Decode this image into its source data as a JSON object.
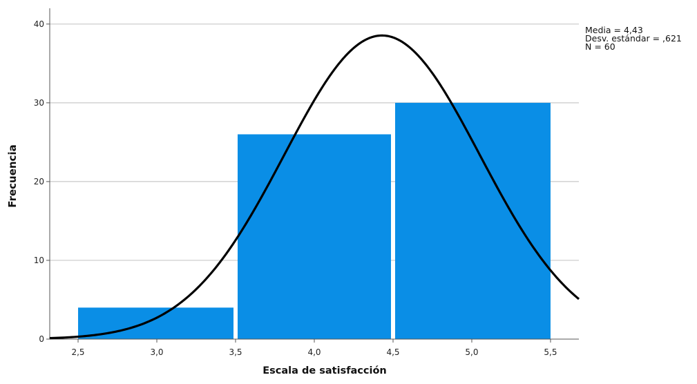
{
  "chart_data": {
    "type": "bar",
    "subtype": "histogram-with-normal-curve",
    "xlabel": "Escala de satisfacción",
    "ylabel": "Frecuencia",
    "bins": [
      {
        "from": 2.5,
        "to": 3.5,
        "value": 4
      },
      {
        "from": 3.5,
        "to": 4.5,
        "value": 26
      },
      {
        "from": 4.5,
        "to": 5.5,
        "value": 30
      }
    ],
    "xticks": [
      "2,5",
      "3,0",
      "3,5",
      "4,0",
      "4,5",
      "5,0",
      "5,5"
    ],
    "xtick_values": [
      2.5,
      3.0,
      3.5,
      4.0,
      4.5,
      5.0,
      5.5
    ],
    "yticks": [
      "0",
      "10",
      "20",
      "30",
      "40"
    ],
    "ytick_values": [
      0,
      10,
      20,
      30,
      40
    ],
    "xlim": [
      2.32,
      5.68
    ],
    "ylim": [
      0,
      42
    ],
    "grid": "horizontal",
    "normal_curve": {
      "mean": 4.43,
      "sd": 0.621,
      "n": 60,
      "bin_width": 1
    },
    "stats_box": {
      "line1": "Media = 4,43",
      "line2": "Desv. estándar = ,621",
      "line3": "N = 60"
    },
    "colors": {
      "bar": "#0a8ee6",
      "curve": "#000000",
      "grid": "#c8c8c8",
      "axis": "#555555"
    }
  }
}
